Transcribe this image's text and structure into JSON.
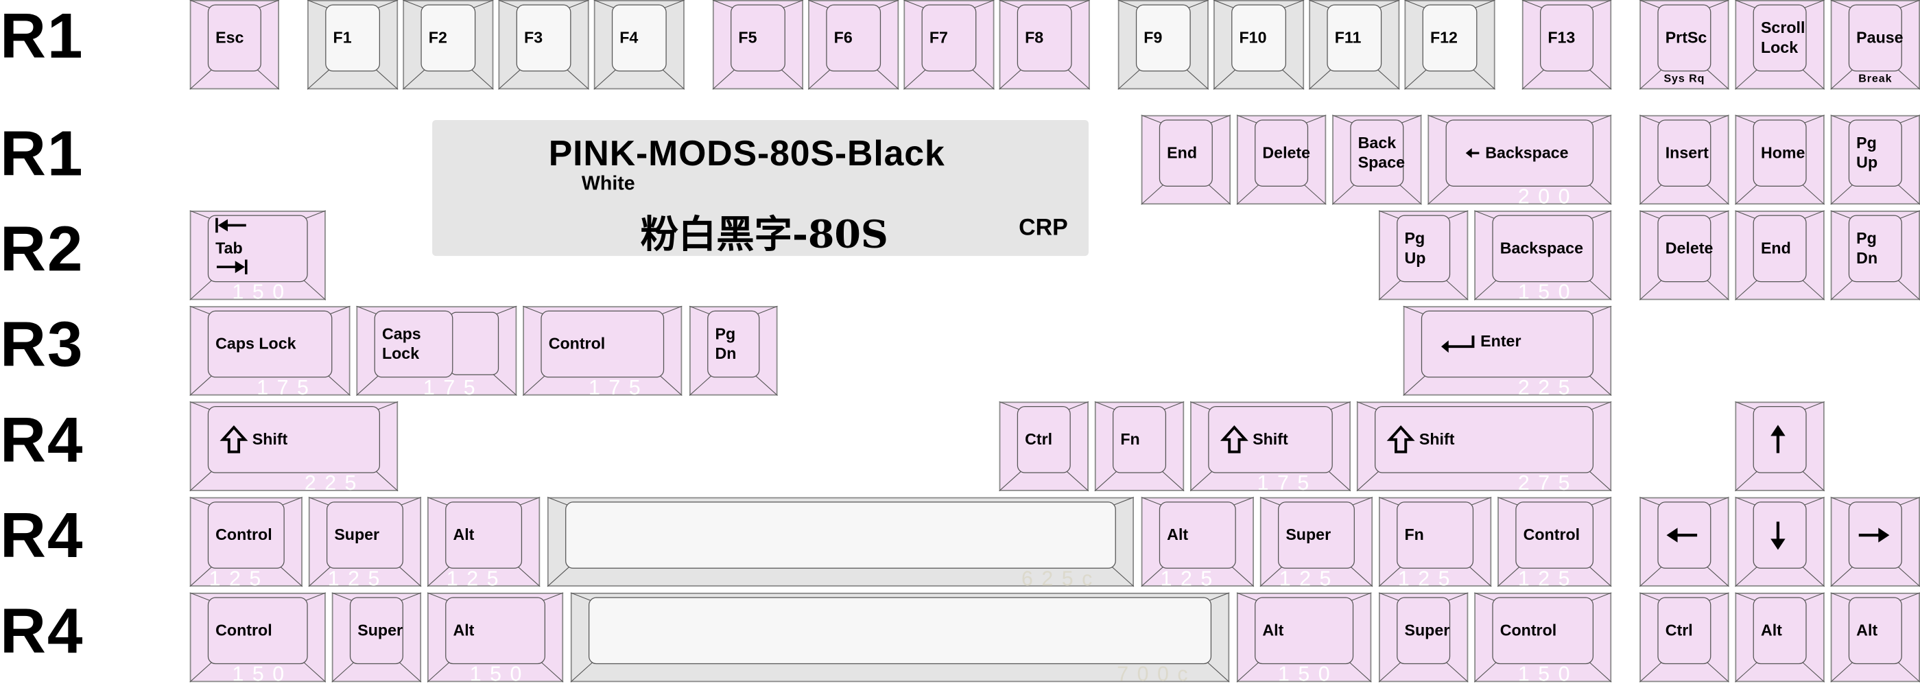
{
  "row_labels": [
    "R1",
    "R1",
    "R2",
    "R3",
    "R4",
    "R4",
    "R4"
  ],
  "label_box": {
    "title_left": "PINK",
    "title_right": "-MODS-80S-Black",
    "subtitle": "White",
    "chinese": "粉白黑字-80S",
    "code": "CRP"
  },
  "colors": {
    "pink": "#f3dcf3",
    "gray": "#e4e4e4",
    "gray_top": "#f7f7f7",
    "outline": "#8a8a8a"
  },
  "rows": [
    {
      "keys": [
        {
          "label": "Esc",
          "color": "pink"
        },
        {
          "label": "F1",
          "color": "gray"
        },
        {
          "label": "F2",
          "color": "gray"
        },
        {
          "label": "F3",
          "color": "gray"
        },
        {
          "label": "F4",
          "color": "gray"
        },
        {
          "label": "F5",
          "color": "pink"
        },
        {
          "label": "F6",
          "color": "pink"
        },
        {
          "label": "F7",
          "color": "pink"
        },
        {
          "label": "F8",
          "color": "pink"
        },
        {
          "label": "F9",
          "color": "gray"
        },
        {
          "label": "F10",
          "color": "gray"
        },
        {
          "label": "F11",
          "color": "gray"
        },
        {
          "label": "F12",
          "color": "gray"
        },
        {
          "label": "F13",
          "color": "pink"
        },
        {
          "label": "PrtSc",
          "sub": "Sys Rq",
          "color": "pink"
        },
        {
          "label": "Scroll\nLock",
          "color": "pink"
        },
        {
          "label": "Pause",
          "sub": "Break",
          "color": "pink"
        }
      ]
    },
    {
      "keys": [
        {
          "label": "End",
          "color": "pink"
        },
        {
          "label": "Delete",
          "color": "pink"
        },
        {
          "label": "Back\nSpace",
          "color": "pink"
        },
        {
          "label": "Backspace",
          "icon": "arrow-left-small",
          "size": "200",
          "color": "pink"
        },
        {
          "label": "Insert",
          "color": "pink"
        },
        {
          "label": "Home",
          "color": "pink"
        },
        {
          "label": "Pg Up",
          "color": "pink"
        }
      ]
    },
    {
      "keys": [
        {
          "label": "Tab",
          "icon": "tab",
          "size": "150",
          "color": "pink"
        },
        {
          "label": "Pg Up",
          "color": "pink"
        },
        {
          "label": "Backspace",
          "size": "150",
          "color": "pink"
        },
        {
          "label": "Delete",
          "color": "pink"
        },
        {
          "label": "End",
          "color": "pink"
        },
        {
          "label": "Pg Dn",
          "color": "pink"
        }
      ]
    },
    {
      "keys": [
        {
          "label": "Caps Lock",
          "size": "175",
          "color": "pink"
        },
        {
          "label": "Caps\nLock",
          "size": "175",
          "color": "pink",
          "stepped": true
        },
        {
          "label": "Control",
          "size": "175",
          "color": "pink"
        },
        {
          "label": "Pg Dn",
          "color": "pink"
        },
        {
          "label": "Enter",
          "icon": "enter",
          "size": "225",
          "color": "pink"
        }
      ]
    },
    {
      "keys": [
        {
          "label": "Shift",
          "icon": "shift",
          "size": "225",
          "color": "pink"
        },
        {
          "label": "Ctrl",
          "color": "pink"
        },
        {
          "label": "Fn",
          "color": "pink"
        },
        {
          "label": "Shift",
          "icon": "shift",
          "size": "175",
          "color": "pink"
        },
        {
          "label": "Shift",
          "icon": "shift",
          "size": "275",
          "color": "pink"
        },
        {
          "label": "",
          "icon": "arrow-up",
          "color": "pink"
        }
      ]
    },
    {
      "keys": [
        {
          "label": "Control",
          "size": "125",
          "color": "pink"
        },
        {
          "label": "Super",
          "size": "125",
          "color": "pink"
        },
        {
          "label": "Alt",
          "size": "125",
          "color": "pink"
        },
        {
          "label": "",
          "size": "625c",
          "color": "gray"
        },
        {
          "label": "Alt",
          "size": "125",
          "color": "pink"
        },
        {
          "label": "Super",
          "size": "125",
          "color": "pink"
        },
        {
          "label": "Fn",
          "size": "125",
          "color": "pink"
        },
        {
          "label": "Control",
          "size": "125",
          "color": "pink"
        },
        {
          "label": "",
          "icon": "arrow-left",
          "color": "pink"
        },
        {
          "label": "",
          "icon": "arrow-down",
          "color": "pink"
        },
        {
          "label": "",
          "icon": "arrow-right",
          "color": "pink"
        }
      ]
    },
    {
      "keys": [
        {
          "label": "Control",
          "size": "150",
          "color": "pink"
        },
        {
          "label": "Super",
          "color": "pink"
        },
        {
          "label": "Alt",
          "size": "150",
          "color": "pink"
        },
        {
          "label": "",
          "size": "700c",
          "color": "gray"
        },
        {
          "label": "Alt",
          "size": "150",
          "color": "pink"
        },
        {
          "label": "Super",
          "color": "pink"
        },
        {
          "label": "Control",
          "size": "150",
          "color": "pink"
        },
        {
          "label": "Ctrl",
          "color": "pink"
        },
        {
          "label": "Alt",
          "color": "pink"
        },
        {
          "label": "Alt",
          "color": "pink"
        }
      ]
    }
  ]
}
